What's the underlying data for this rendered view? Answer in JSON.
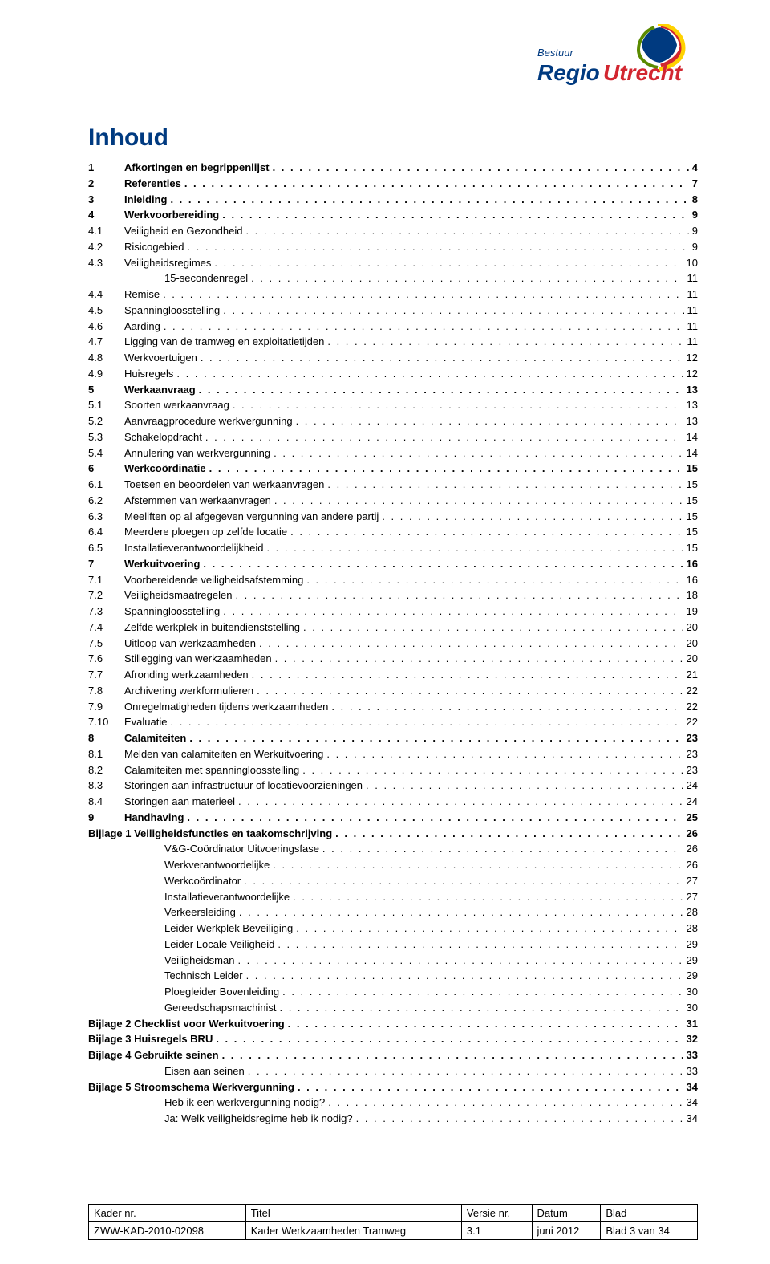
{
  "logo": {
    "top_text": "Bestuur",
    "brand": "Regio",
    "accent": "Utrecht",
    "colors": {
      "navy": "#003a80",
      "red": "#d22630",
      "yellow": "#ffd200",
      "green": "#5a8a00",
      "orange": "#f28c00"
    }
  },
  "title": "Inhoud",
  "title_color": "#003a80",
  "font_size": 13,
  "toc": [
    {
      "level": "1",
      "num": "1",
      "label": "Afkortingen en begrippenlijst",
      "page": "4"
    },
    {
      "level": "1",
      "num": "2",
      "label": "Referenties",
      "page": "7"
    },
    {
      "level": "1",
      "num": "3",
      "label": "Inleiding",
      "page": "8"
    },
    {
      "level": "1",
      "num": "4",
      "label": "Werkvoorbereiding",
      "page": "9"
    },
    {
      "level": "2",
      "num": "4.1",
      "label": "Veiligheid en Gezondheid",
      "page": "9"
    },
    {
      "level": "2",
      "num": "4.2",
      "label": "Risicogebied",
      "page": "9"
    },
    {
      "level": "2",
      "num": "4.3",
      "label": "Veiligheidsregimes",
      "page": "10"
    },
    {
      "level": "sub",
      "num": "",
      "label": "15-secondenregel",
      "page": "11"
    },
    {
      "level": "2",
      "num": "4.4",
      "label": "Remise",
      "page": "11"
    },
    {
      "level": "2",
      "num": "4.5",
      "label": "Spanningloosstelling",
      "page": "11"
    },
    {
      "level": "2",
      "num": "4.6",
      "label": "Aarding",
      "page": "11"
    },
    {
      "level": "2",
      "num": "4.7",
      "label": "Ligging van de tramweg en exploitatietijden",
      "page": "11"
    },
    {
      "level": "2",
      "num": "4.8",
      "label": "Werkvoertuigen",
      "page": "12"
    },
    {
      "level": "2",
      "num": "4.9",
      "label": "Huisregels",
      "page": "12"
    },
    {
      "level": "1",
      "num": "5",
      "label": "Werkaanvraag",
      "page": "13"
    },
    {
      "level": "2",
      "num": "5.1",
      "label": "Soorten werkaanvraag",
      "page": "13"
    },
    {
      "level": "2",
      "num": "5.2",
      "label": "Aanvraagprocedure werkvergunning",
      "page": "13"
    },
    {
      "level": "2",
      "num": "5.3",
      "label": "Schakelopdracht",
      "page": "14"
    },
    {
      "level": "2",
      "num": "5.4",
      "label": "Annulering van werkvergunning",
      "page": "14"
    },
    {
      "level": "1",
      "num": "6",
      "label": "Werkcoördinatie",
      "page": "15"
    },
    {
      "level": "2",
      "num": "6.1",
      "label": "Toetsen en beoordelen van werkaanvragen",
      "page": "15"
    },
    {
      "level": "2",
      "num": "6.2",
      "label": "Afstemmen van werkaanvragen",
      "page": "15"
    },
    {
      "level": "2",
      "num": "6.3",
      "label": "Meeliften op al afgegeven vergunning van andere partij",
      "page": "15"
    },
    {
      "level": "2",
      "num": "6.4",
      "label": "Meerdere ploegen op zelfde locatie",
      "page": "15"
    },
    {
      "level": "2",
      "num": "6.5",
      "label": "Installatieverantwoordelijkheid",
      "page": "15"
    },
    {
      "level": "1",
      "num": "7",
      "label": "Werkuitvoering",
      "page": "16"
    },
    {
      "level": "2",
      "num": "7.1",
      "label": "Voorbereidende veiligheidsafstemming",
      "page": "16"
    },
    {
      "level": "2",
      "num": "7.2",
      "label": "Veiligheidsmaatregelen",
      "page": "18"
    },
    {
      "level": "2",
      "num": "7.3",
      "label": "Spanningloosstelling",
      "page": "19"
    },
    {
      "level": "2",
      "num": "7.4",
      "label": "Zelfde werkplek in buitendienststelling",
      "page": "20"
    },
    {
      "level": "2",
      "num": "7.5",
      "label": "Uitloop van werkzaamheden",
      "page": "20"
    },
    {
      "level": "2",
      "num": "7.6",
      "label": "Stillegging van werkzaamheden",
      "page": "20"
    },
    {
      "level": "2",
      "num": "7.7",
      "label": "Afronding werkzaamheden",
      "page": "21"
    },
    {
      "level": "2",
      "num": "7.8",
      "label": "Archivering werkformulieren",
      "page": "22"
    },
    {
      "level": "2",
      "num": "7.9",
      "label": "Onregelmatigheden tijdens werkzaamheden",
      "page": "22"
    },
    {
      "level": "2",
      "num": "7.10",
      "label": "Evaluatie",
      "page": "22"
    },
    {
      "level": "1",
      "num": "8",
      "label": "Calamiteiten",
      "page": "23"
    },
    {
      "level": "2",
      "num": "8.1",
      "label": "Melden van calamiteiten en Werkuitvoering",
      "page": "23"
    },
    {
      "level": "2",
      "num": "8.2",
      "label": "Calamiteiten met spanningloosstelling",
      "page": "23"
    },
    {
      "level": "2",
      "num": "8.3",
      "label": "Storingen aan infrastructuur of locatievoorzieningen",
      "page": "24"
    },
    {
      "level": "2",
      "num": "8.4",
      "label": "Storingen aan materieel",
      "page": "24"
    },
    {
      "level": "1",
      "num": "9",
      "label": "Handhaving",
      "page": "25"
    },
    {
      "level": "bijlage",
      "num": "",
      "label": "Bijlage 1 Veiligheidsfuncties en taakomschrijving",
      "page": "26"
    },
    {
      "level": "sub",
      "num": "",
      "label": "V&G-Coördinator Uitvoeringsfase",
      "page": "26"
    },
    {
      "level": "sub",
      "num": "",
      "label": "Werkverantwoordelijke",
      "page": "26"
    },
    {
      "level": "sub",
      "num": "",
      "label": "Werkcoördinator",
      "page": "27"
    },
    {
      "level": "sub",
      "num": "",
      "label": "Installatieverantwoordelijke",
      "page": "27"
    },
    {
      "level": "sub",
      "num": "",
      "label": "Verkeersleiding",
      "page": "28"
    },
    {
      "level": "sub",
      "num": "",
      "label": "Leider Werkplek Beveiliging",
      "page": "28"
    },
    {
      "level": "sub",
      "num": "",
      "label": "Leider Locale Veiligheid",
      "page": "29"
    },
    {
      "level": "sub",
      "num": "",
      "label": "Veiligheidsman",
      "page": "29"
    },
    {
      "level": "sub",
      "num": "",
      "label": "Technisch Leider",
      "page": "29"
    },
    {
      "level": "sub",
      "num": "",
      "label": "Ploegleider Bovenleiding",
      "page": "30"
    },
    {
      "level": "sub",
      "num": "",
      "label": "Gereedschapsmachinist",
      "page": "30"
    },
    {
      "level": "bijlage",
      "num": "",
      "label": "Bijlage 2 Checklist voor Werkuitvoering",
      "page": "31"
    },
    {
      "level": "bijlage",
      "num": "",
      "label": "Bijlage 3 Huisregels BRU",
      "page": "32"
    },
    {
      "level": "bijlage",
      "num": "",
      "label": "Bijlage 4 Gebruikte seinen",
      "page": "33"
    },
    {
      "level": "sub",
      "num": "",
      "label": "Eisen aan seinen",
      "page": "33"
    },
    {
      "level": "bijlage",
      "num": "",
      "label": "Bijlage 5 Stroomschema Werkvergunning",
      "page": "34"
    },
    {
      "level": "sub",
      "num": "",
      "label": "Heb ik een werkvergunning nodig?",
      "page": "34"
    },
    {
      "level": "sub",
      "num": "",
      "label": "Ja: Welk veiligheidsregime heb ik nodig?",
      "page": "34"
    }
  ],
  "footer": {
    "headers": [
      "Kader nr.",
      "Titel",
      "Versie nr.",
      "Datum",
      "Blad"
    ],
    "values": [
      "ZWW-KAD-2010-02098",
      "Kader Werkzaamheden Tramweg",
      "3.1",
      "juni 2012",
      "Blad 3 van 34"
    ]
  }
}
